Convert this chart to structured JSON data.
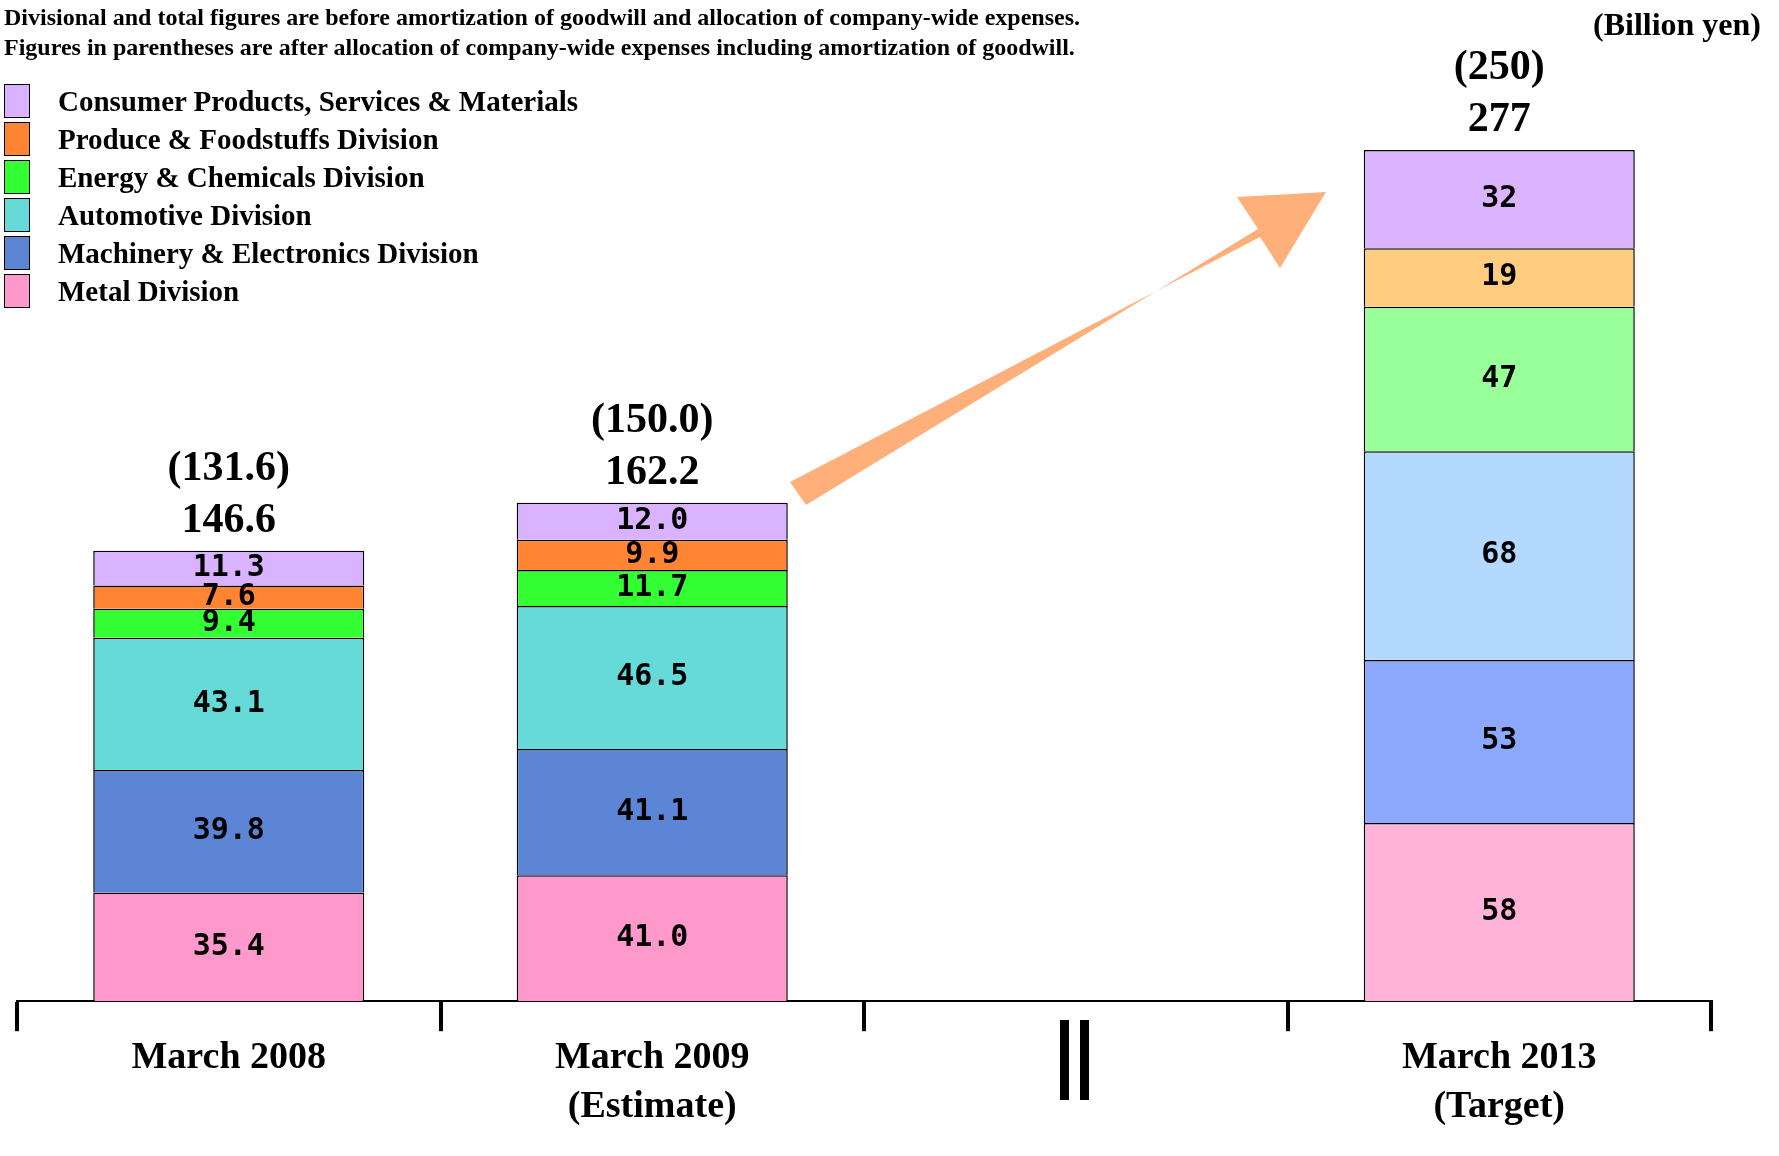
{
  "chart_data": {
    "type": "bar",
    "stacked": true,
    "ylabel": "(Billion yen)",
    "categories": [
      "March 2008",
      "March 2009\n(Estimate)",
      null,
      "March 2013\n(Target)"
    ],
    "series": [
      {
        "name": "Metal Division",
        "color": "#ff99cc",
        "colors": [
          "#ff99cc",
          "#ff99cc",
          null,
          "#ffb3d9"
        ],
        "values": [
          35.4,
          41.0,
          null,
          58
        ],
        "value_labels": [
          "35.4",
          "41.0",
          null,
          "58"
        ]
      },
      {
        "name": "Machinery & Electronics Division",
        "color": "#5c85d6",
        "colors": [
          "#5c85d6",
          "#5c85d6",
          null,
          "#8ca8ff"
        ],
        "values": [
          39.8,
          41.1,
          null,
          53
        ],
        "value_labels": [
          "39.8",
          "41.1",
          null,
          "53"
        ]
      },
      {
        "name": "Automotive Division",
        "color": "#66d9d9",
        "colors": [
          "#66d9d9",
          "#66d9d9",
          null,
          "#b3d9ff"
        ],
        "values": [
          43.1,
          46.5,
          null,
          68
        ],
        "value_labels": [
          "43.1",
          "46.5",
          null,
          "68"
        ]
      },
      {
        "name": "Energy & Chemicals Division",
        "color": "#33ff33",
        "colors": [
          "#33ff33",
          "#33ff33",
          null,
          "#99ff99"
        ],
        "values": [
          9.4,
          11.7,
          null,
          47
        ],
        "value_labels": [
          "9.4",
          "11.7",
          null,
          "47"
        ]
      },
      {
        "name": "Produce &  Foodstuffs Division",
        "color": "#ff8533",
        "colors": [
          "#ff8533",
          "#ff8533",
          null,
          "#ffcc80"
        ],
        "values": [
          7.6,
          9.9,
          null,
          19
        ],
        "value_labels": [
          "7.6",
          "9.9",
          null,
          "19"
        ]
      },
      {
        "name": "Consumer Products, Services & Materials",
        "color": "#d9b3ff",
        "colors": [
          "#d9b3ff",
          "#d9b3ff",
          null,
          "#dcb3ff"
        ],
        "values": [
          11.3,
          12.0,
          null,
          32
        ],
        "value_labels": [
          "11.3",
          "12.0",
          null,
          "32"
        ]
      }
    ],
    "totals": [
      "146.6",
      "162.2",
      null,
      "277"
    ],
    "tick_labels": "x",
    "grid": false,
    "legend": "top left",
    "annotations": [
      "Divisional and total figures are before amortization of goodwill and allocation of company-wide expenses.",
      "Figures in parentheses are after allocation of company-wide expenses including amortization of goodwill.",
      {
        "text": "(131.6)",
        "x": "March 2008",
        "y": 146.6
      },
      {
        "text": "(150.0)",
        "x": "March 2009\n(Estimate)",
        "y": 162.2
      },
      {
        "text": "(250)",
        "x": "March 2013\n(Target)",
        "y": 277
      }
    ]
  }
}
